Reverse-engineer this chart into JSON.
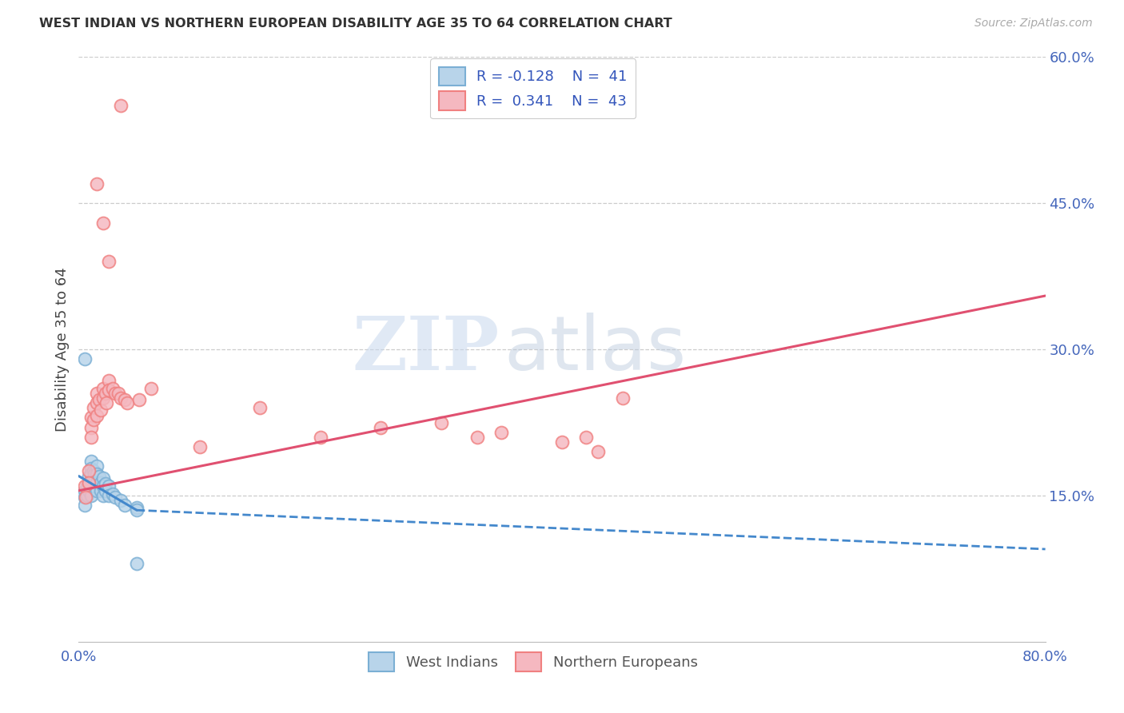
{
  "title": "WEST INDIAN VS NORTHERN EUROPEAN DISABILITY AGE 35 TO 64 CORRELATION CHART",
  "source": "Source: ZipAtlas.com",
  "ylabel": "Disability Age 35 to 64",
  "xlim": [
    0.0,
    0.8
  ],
  "ylim": [
    0.0,
    0.6
  ],
  "yticks_right": [
    0.15,
    0.3,
    0.45,
    0.6
  ],
  "ytick_labels_right": [
    "15.0%",
    "30.0%",
    "45.0%",
    "60.0%"
  ],
  "legend_r1": "R = -0.128",
  "legend_n1": "N =  41",
  "legend_r2": "R =  0.341",
  "legend_n2": "N =  43",
  "blue_edge": "#7bafd4",
  "pink_edge": "#f08080",
  "blue_face": "#b8d4ea",
  "pink_face": "#f5b8c0",
  "trend_blue": "#4488cc",
  "trend_pink": "#e05070",
  "watermark_zip": "ZIP",
  "watermark_atlas": "atlas",
  "west_indians_x": [
    0.005,
    0.005,
    0.005,
    0.007,
    0.007,
    0.008,
    0.008,
    0.008,
    0.01,
    0.01,
    0.01,
    0.01,
    0.01,
    0.01,
    0.012,
    0.012,
    0.012,
    0.013,
    0.013,
    0.015,
    0.015,
    0.015,
    0.015,
    0.017,
    0.018,
    0.018,
    0.02,
    0.02,
    0.02,
    0.022,
    0.022,
    0.025,
    0.025,
    0.028,
    0.03,
    0.035,
    0.038,
    0.048,
    0.005,
    0.048,
    0.048
  ],
  "west_indians_y": [
    0.155,
    0.148,
    0.14,
    0.16,
    0.15,
    0.17,
    0.162,
    0.155,
    0.185,
    0.178,
    0.172,
    0.165,
    0.158,
    0.15,
    0.175,
    0.168,
    0.16,
    0.172,
    0.165,
    0.18,
    0.172,
    0.163,
    0.155,
    0.17,
    0.163,
    0.155,
    0.168,
    0.16,
    0.15,
    0.162,
    0.155,
    0.16,
    0.15,
    0.152,
    0.148,
    0.145,
    0.14,
    0.138,
    0.29,
    0.135,
    0.08
  ],
  "northern_europeans_x": [
    0.005,
    0.006,
    0.008,
    0.008,
    0.01,
    0.01,
    0.01,
    0.012,
    0.012,
    0.015,
    0.015,
    0.015,
    0.017,
    0.018,
    0.02,
    0.02,
    0.022,
    0.023,
    0.025,
    0.025,
    0.028,
    0.03,
    0.033,
    0.035,
    0.038,
    0.04,
    0.05,
    0.06,
    0.1,
    0.15,
    0.2,
    0.25,
    0.3,
    0.33,
    0.35,
    0.4,
    0.42,
    0.43,
    0.45,
    0.015,
    0.02,
    0.025,
    0.035
  ],
  "northern_europeans_y": [
    0.16,
    0.148,
    0.175,
    0.163,
    0.23,
    0.22,
    0.21,
    0.24,
    0.228,
    0.255,
    0.245,
    0.232,
    0.248,
    0.238,
    0.26,
    0.25,
    0.255,
    0.245,
    0.268,
    0.258,
    0.26,
    0.255,
    0.255,
    0.25,
    0.248,
    0.245,
    0.248,
    0.26,
    0.2,
    0.24,
    0.21,
    0.22,
    0.225,
    0.21,
    0.215,
    0.205,
    0.21,
    0.195,
    0.25,
    0.47,
    0.43,
    0.39,
    0.55
  ],
  "blue_trend_start_x": 0.0,
  "blue_trend_end_solid": 0.048,
  "blue_trend_end_dash": 0.8,
  "pink_trend_start_x": 0.0,
  "pink_trend_end_x": 0.8,
  "blue_trend_y0": 0.17,
  "blue_trend_y1": 0.135,
  "blue_trend_y_end": 0.095,
  "pink_trend_y0": 0.155,
  "pink_trend_y1": 0.355
}
